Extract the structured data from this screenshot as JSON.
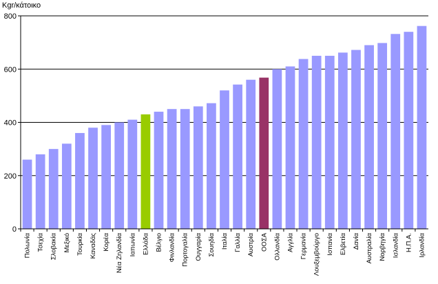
{
  "chart_data": {
    "type": "bar",
    "title": "",
    "ylabel": "Kgr/κάτοικο",
    "xlabel": "",
    "ylim": [
      0,
      800
    ],
    "yticks": [
      0,
      200,
      400,
      600,
      800
    ],
    "grid": "horizontal",
    "legend": "none",
    "categories": [
      "Πολωνία",
      "Τσεχία",
      "Σλοβακία",
      "Μεξικό",
      "Τουρκία",
      "Καναδάς",
      "Κορέα",
      "Νέα Ζηλανδία",
      "Ιαπωνία",
      "Ελλάδα",
      "Βέλγιο",
      "Φινλανδία",
      "Πορτογαλία",
      "Ουγγαρία",
      "Σουηδία",
      "Ιταλία",
      "Γαλλία",
      "Αυστρία",
      "ΟΟΣΑ",
      "Ολλανδία",
      "Αγγλία",
      "Γερμανία",
      "Λουξεμβούργο",
      "Ισπανία",
      "Ελβετία",
      "Δανία",
      "Αυστραλία",
      "Νορβηγία",
      "Ισλανδία",
      "Η.Π.Α.",
      "Ιρλανδία"
    ],
    "values": [
      260,
      280,
      300,
      320,
      360,
      380,
      390,
      400,
      410,
      430,
      440,
      450,
      450,
      460,
      472,
      520,
      542,
      560,
      568,
      600,
      610,
      638,
      650,
      650,
      662,
      672,
      690,
      698,
      732,
      740,
      762
    ],
    "colors": {
      "default": "#9999ff",
      "highlight_greece": "#99cc00",
      "highlight_oecd": "#993366",
      "axis": "#000000",
      "grid": "#000000"
    },
    "highlights": {
      "Ελλάδα": "highlight_greece",
      "ΟΟΣΑ": "highlight_oecd"
    }
  }
}
